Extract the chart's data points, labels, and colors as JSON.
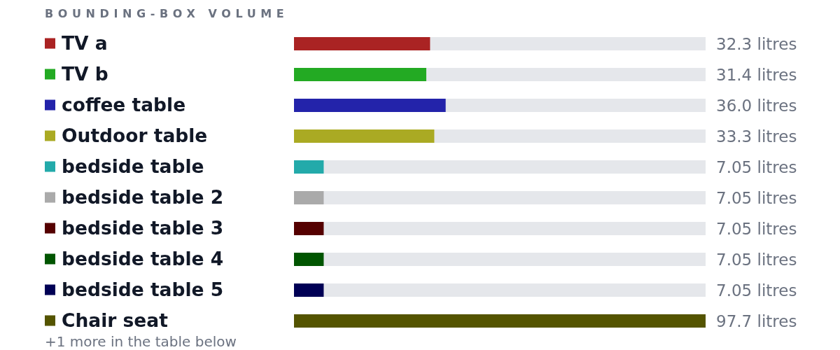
{
  "chart_data": {
    "type": "bar",
    "orientation": "horizontal",
    "title": "BOUNDING-BOX VOLUME",
    "categories": [
      "TV a",
      "TV b",
      "coffee table",
      "Outdoor table",
      "bedside table",
      "bedside table 2",
      "bedside table 3",
      "bedside table 4",
      "bedside table 5",
      "Chair seat"
    ],
    "values": [
      32.3,
      31.4,
      36.0,
      33.3,
      7.05,
      7.05,
      7.05,
      7.05,
      7.05,
      97.7
    ],
    "colors": [
      "#aa2323",
      "#23aa23",
      "#2323aa",
      "#aaaa23",
      "#23aaaa",
      "#aaaaaa",
      "#550000",
      "#005500",
      "#000055",
      "#545400"
    ],
    "value_labels": [
      "32.3 litres",
      "31.4 litres",
      "36.0 litres",
      "33.3 litres",
      "7.05 litres",
      "7.05 litres",
      "7.05 litres",
      "7.05 litres",
      "7.05 litres",
      "97.7 litres"
    ],
    "annotations": [
      "+1 more in the table below"
    ]
  }
}
